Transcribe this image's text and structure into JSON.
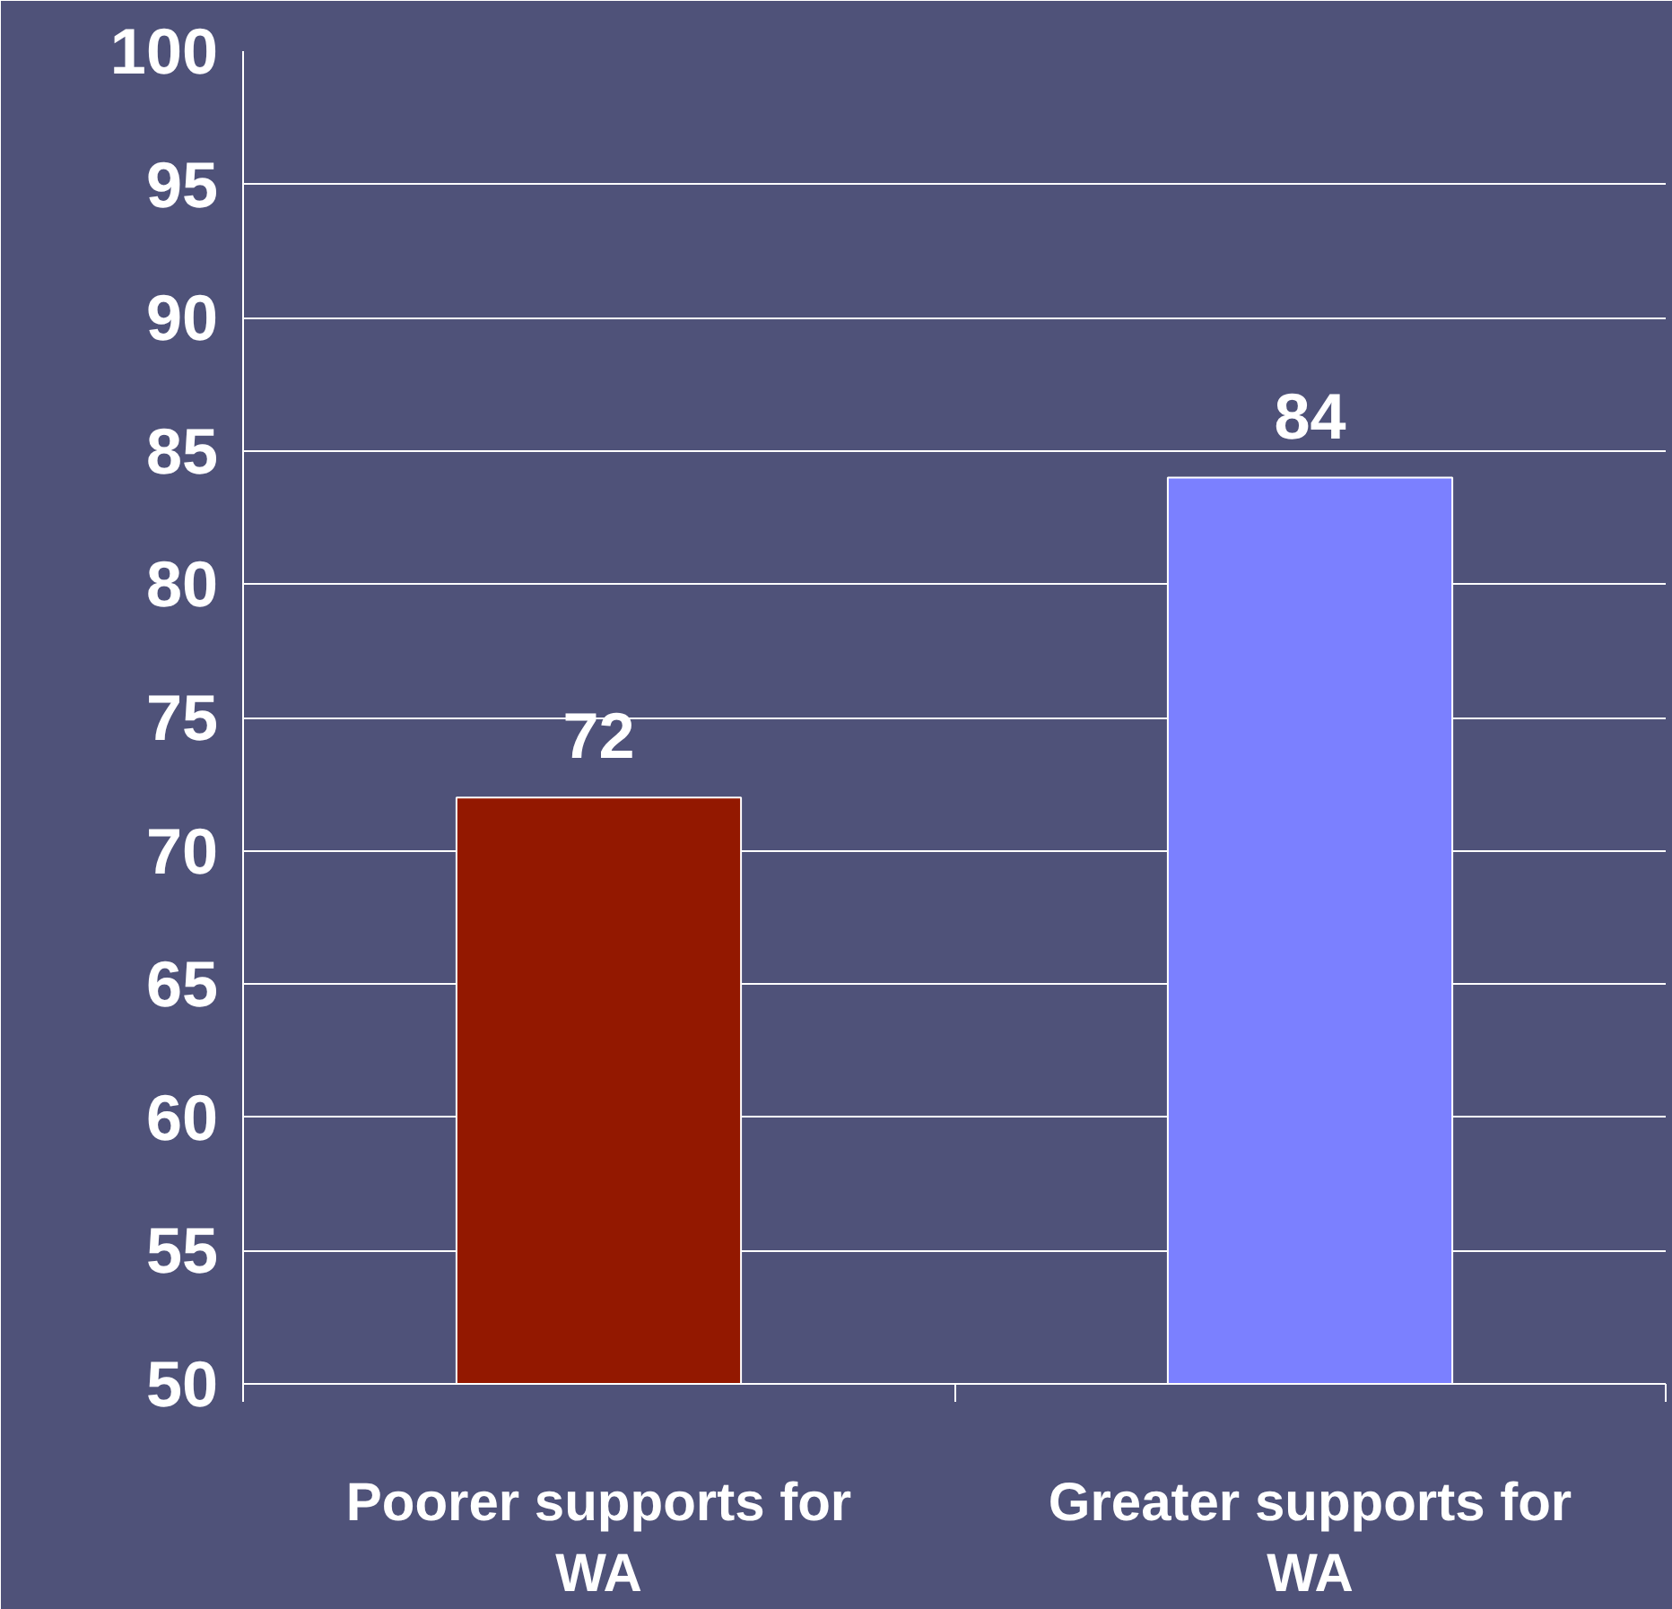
{
  "chart_data": {
    "type": "bar",
    "categories": [
      "Poorer supports for WA",
      "Greater supports for WA"
    ],
    "values": [
      72,
      84
    ],
    "colors": [
      "#931800",
      "#7b80ff"
    ],
    "ylim": [
      50,
      100
    ],
    "yticks": [
      50,
      55,
      60,
      65,
      70,
      75,
      80,
      85,
      90,
      95,
      100
    ],
    "grid": "y",
    "data_labels": true
  }
}
